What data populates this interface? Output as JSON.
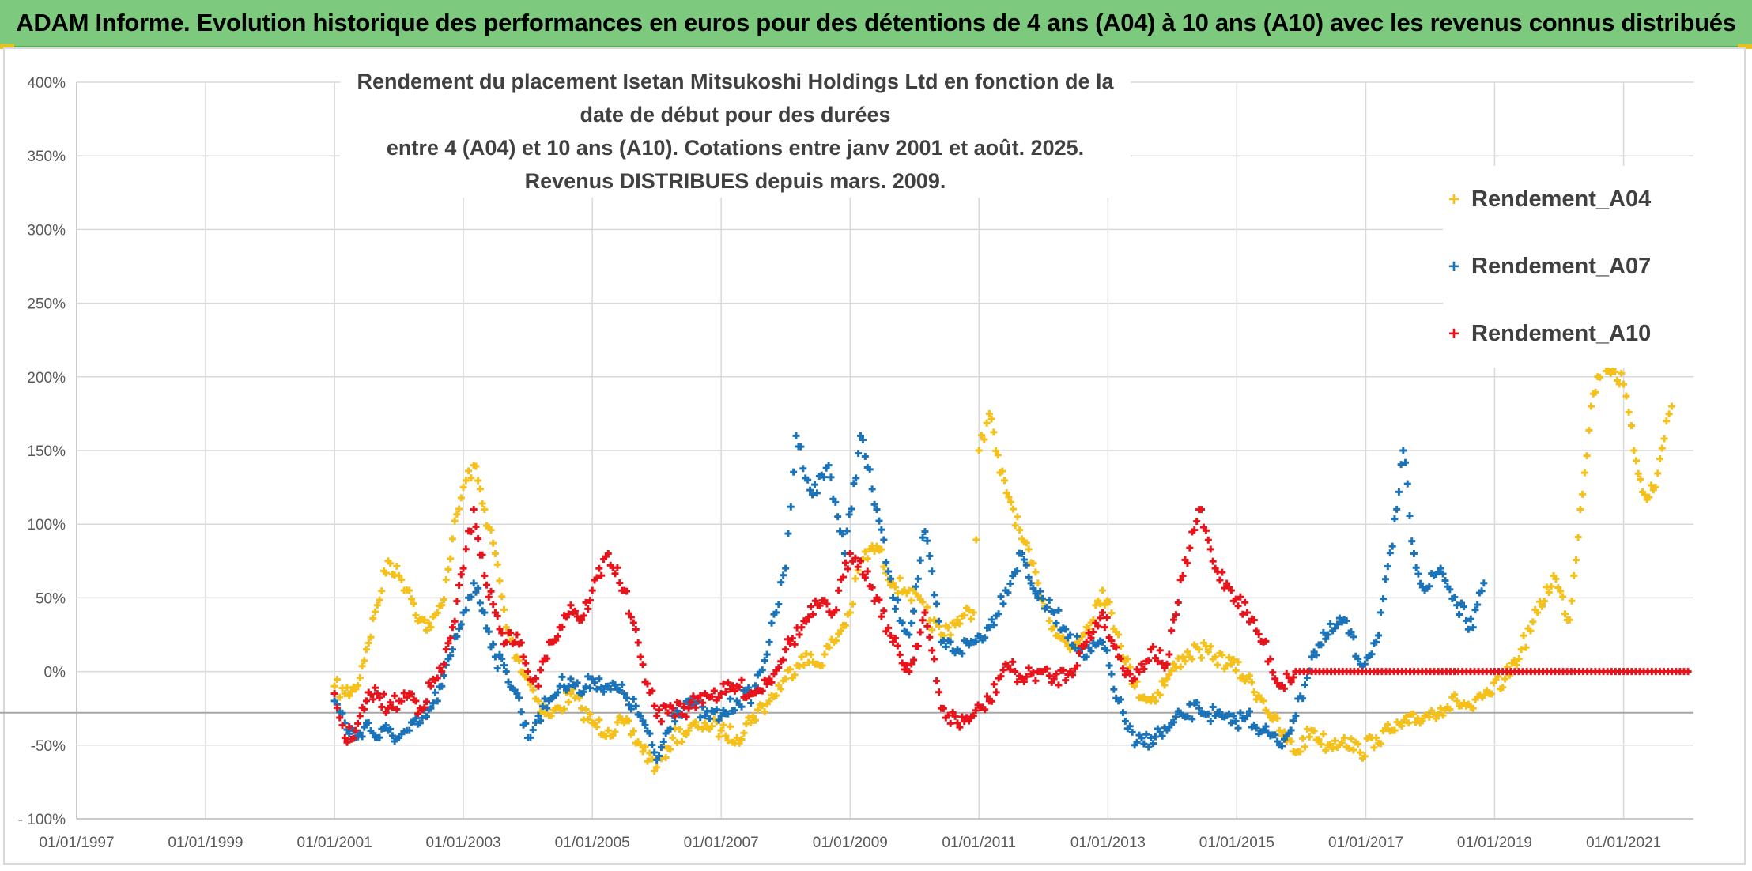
{
  "banner": {
    "text": "ADAM Informe. Evolution historique des performances en euros pour des détentions de 4 ans (A04) à 10 ans (A10) avec les revenus connus distribués"
  },
  "chart_data": {
    "type": "scatter",
    "title_line1": "Rendement du placement Isetan Mitsukoshi Holdings Ltd en fonction de la date de début pour des durées",
    "title_line2": "entre 4 (A04) et 10 ans (A10). Cotations entre janv 2001 et août. 2025. Revenus DISTRIBUES depuis mars. 2009.",
    "x_axis": {
      "type": "date",
      "range": [
        "1997-01-01",
        "2022-02-01"
      ],
      "tick_labels": [
        "01/01/1997",
        "01/01/1999",
        "01/01/2001",
        "01/01/2003",
        "01/01/2005",
        "01/01/2007",
        "01/01/2009",
        "01/01/2011",
        "01/01/2013",
        "01/01/2015",
        "01/01/2017",
        "01/01/2019",
        "01/01/2021"
      ]
    },
    "y_axis": {
      "range": [
        -100,
        400
      ],
      "unit": "%",
      "tick_labels": [
        "- 100%",
        "-50%",
        "0%",
        "50%",
        "100%",
        "150%",
        "200%",
        "250%",
        "300%",
        "350%",
        "400%"
      ]
    },
    "grid": true,
    "legend_position": "right",
    "series": [
      {
        "name": "Rendement_A04",
        "color": "#f5c01a",
        "points": [
          [
            "2001-01-01",
            -10
          ],
          [
            "2001-03-01",
            -15
          ],
          [
            "2001-05-01",
            -12
          ],
          [
            "2001-07-01",
            15
          ],
          [
            "2001-09-01",
            45
          ],
          [
            "2001-11-01",
            75
          ],
          [
            "2002-01-01",
            65
          ],
          [
            "2002-03-01",
            55
          ],
          [
            "2002-05-01",
            35
          ],
          [
            "2002-07-01",
            30
          ],
          [
            "2002-09-01",
            45
          ],
          [
            "2002-11-01",
            90
          ],
          [
            "2003-01-01",
            125
          ],
          [
            "2003-03-01",
            140
          ],
          [
            "2003-05-01",
            110
          ],
          [
            "2003-07-01",
            80
          ],
          [
            "2003-09-01",
            30
          ],
          [
            "2003-11-01",
            10
          ],
          [
            "2004-01-01",
            -5
          ],
          [
            "2004-03-01",
            -20
          ],
          [
            "2004-05-01",
            -30
          ],
          [
            "2004-07-01",
            -25
          ],
          [
            "2004-09-01",
            -15
          ],
          [
            "2004-11-01",
            -25
          ],
          [
            "2005-01-01",
            -35
          ],
          [
            "2005-04-01",
            -40
          ],
          [
            "2005-07-01",
            -35
          ],
          [
            "2005-10-01",
            -50
          ],
          [
            "2006-01-01",
            -65
          ],
          [
            "2006-04-01",
            -45
          ],
          [
            "2006-07-01",
            -40
          ],
          [
            "2006-10-01",
            -35
          ],
          [
            "2007-01-01",
            -40
          ],
          [
            "2007-04-01",
            -45
          ],
          [
            "2007-07-01",
            -30
          ],
          [
            "2007-10-01",
            -20
          ],
          [
            "2008-01-01",
            -5
          ],
          [
            "2008-04-01",
            10
          ],
          [
            "2008-07-01",
            5
          ],
          [
            "2008-10-01",
            20
          ],
          [
            "2009-01-01",
            40
          ],
          [
            "2009-03-01",
            75
          ],
          [
            "2009-06-01",
            85
          ],
          [
            "2009-09-01",
            60
          ],
          [
            "2009-12-01",
            55
          ],
          [
            "2010-03-01",
            40
          ],
          [
            "2010-06-01",
            25
          ],
          [
            "2010-09-01",
            35
          ],
          [
            "2010-12-01",
            40
          ],
          [
            "2011-01-01",
            150
          ],
          [
            "2011-03-01",
            175
          ],
          [
            "2011-05-01",
            135
          ],
          [
            "2011-07-01",
            115
          ],
          [
            "2011-09-01",
            90
          ],
          [
            "2011-12-01",
            60
          ],
          [
            "2012-03-01",
            30
          ],
          [
            "2012-06-01",
            15
          ],
          [
            "2012-09-01",
            30
          ],
          [
            "2012-12-01",
            55
          ],
          [
            "2013-03-01",
            25
          ],
          [
            "2013-06-01",
            -10
          ],
          [
            "2013-09-01",
            -20
          ],
          [
            "2013-12-01",
            -5
          ],
          [
            "2014-03-01",
            10
          ],
          [
            "2014-06-01",
            15
          ],
          [
            "2014-09-01",
            10
          ],
          [
            "2014-12-01",
            5
          ],
          [
            "2015-03-01",
            -5
          ],
          [
            "2015-06-01",
            -20
          ],
          [
            "2015-09-01",
            -40
          ],
          [
            "2015-12-01",
            -55
          ],
          [
            "2016-03-01",
            -40
          ],
          [
            "2016-06-01",
            -50
          ],
          [
            "2016-09-01",
            -45
          ],
          [
            "2016-12-01",
            -55
          ],
          [
            "2017-03-01",
            -45
          ],
          [
            "2017-06-01",
            -40
          ],
          [
            "2017-09-01",
            -35
          ],
          [
            "2017-12-01",
            -30
          ],
          [
            "2018-03-01",
            -25
          ],
          [
            "2018-06-01",
            -20
          ],
          [
            "2018-09-01",
            -25
          ],
          [
            "2018-12-01",
            -15
          ],
          [
            "2019-03-01",
            -5
          ],
          [
            "2019-06-01",
            15
          ],
          [
            "2019-09-01",
            40
          ],
          [
            "2019-12-01",
            65
          ],
          [
            "2020-03-01",
            35
          ],
          [
            "2020-05-01",
            110
          ],
          [
            "2020-07-01",
            180
          ],
          [
            "2020-09-01",
            210
          ],
          [
            "2020-11-01",
            205
          ],
          [
            "2021-01-01",
            195
          ],
          [
            "2021-03-01",
            150
          ],
          [
            "2021-05-01",
            120
          ],
          [
            "2021-07-01",
            125
          ],
          [
            "2021-09-01",
            170
          ],
          [
            "2021-10-01",
            180
          ]
        ]
      },
      {
        "name": "Rendement_A07",
        "color": "#1a73b8",
        "points": [
          [
            "2001-01-01",
            -20
          ],
          [
            "2001-03-01",
            -35
          ],
          [
            "2001-05-01",
            -45
          ],
          [
            "2001-07-01",
            -35
          ],
          [
            "2001-09-01",
            -45
          ],
          [
            "2001-11-01",
            -40
          ],
          [
            "2002-01-01",
            -45
          ],
          [
            "2002-03-01",
            -40
          ],
          [
            "2002-05-01",
            -35
          ],
          [
            "2002-07-01",
            -25
          ],
          [
            "2002-09-01",
            -10
          ],
          [
            "2002-11-01",
            15
          ],
          [
            "2003-01-01",
            40
          ],
          [
            "2003-03-01",
            60
          ],
          [
            "2003-05-01",
            40
          ],
          [
            "2003-07-01",
            10
          ],
          [
            "2003-09-01",
            0
          ],
          [
            "2003-11-01",
            -15
          ],
          [
            "2004-01-01",
            -45
          ],
          [
            "2004-03-01",
            -30
          ],
          [
            "2004-05-01",
            -20
          ],
          [
            "2004-07-01",
            -10
          ],
          [
            "2004-09-01",
            -5
          ],
          [
            "2004-11-01",
            -15
          ],
          [
            "2005-01-01",
            -5
          ],
          [
            "2005-04-01",
            -10
          ],
          [
            "2005-07-01",
            -15
          ],
          [
            "2005-10-01",
            -30
          ],
          [
            "2006-01-01",
            -60
          ],
          [
            "2006-04-01",
            -30
          ],
          [
            "2006-07-01",
            -20
          ],
          [
            "2006-10-01",
            -30
          ],
          [
            "2007-01-01",
            -30
          ],
          [
            "2007-04-01",
            -20
          ],
          [
            "2007-07-01",
            -15
          ],
          [
            "2007-10-01",
            20
          ],
          [
            "2008-01-01",
            70
          ],
          [
            "2008-03-01",
            160
          ],
          [
            "2008-06-01",
            120
          ],
          [
            "2008-09-01",
            140
          ],
          [
            "2008-12-01",
            80
          ],
          [
            "2009-03-01",
            160
          ],
          [
            "2009-06-01",
            110
          ],
          [
            "2009-09-01",
            50
          ],
          [
            "2009-12-01",
            25
          ],
          [
            "2010-03-01",
            95
          ],
          [
            "2010-06-01",
            20
          ],
          [
            "2010-09-01",
            15
          ],
          [
            "2010-12-01",
            20
          ],
          [
            "2011-03-01",
            30
          ],
          [
            "2011-06-01",
            55
          ],
          [
            "2011-09-01",
            80
          ],
          [
            "2011-12-01",
            50
          ],
          [
            "2012-03-01",
            40
          ],
          [
            "2012-06-01",
            25
          ],
          [
            "2012-09-01",
            10
          ],
          [
            "2012-12-01",
            20
          ],
          [
            "2013-03-01",
            -20
          ],
          [
            "2013-06-01",
            -50
          ],
          [
            "2013-09-01",
            -45
          ],
          [
            "2013-12-01",
            -40
          ],
          [
            "2014-03-01",
            -30
          ],
          [
            "2014-06-01",
            -25
          ],
          [
            "2014-09-01",
            -30
          ],
          [
            "2014-12-01",
            -35
          ],
          [
            "2015-03-01",
            -30
          ],
          [
            "2015-06-01",
            -40
          ],
          [
            "2015-09-01",
            -50
          ],
          [
            "2015-12-01",
            -30
          ],
          [
            "2016-03-01",
            10
          ],
          [
            "2016-06-01",
            25
          ],
          [
            "2016-09-01",
            35
          ],
          [
            "2016-12-01",
            5
          ],
          [
            "2017-03-01",
            20
          ],
          [
            "2017-06-01",
            85
          ],
          [
            "2017-08-01",
            150
          ],
          [
            "2017-10-01",
            80
          ],
          [
            "2017-12-01",
            55
          ],
          [
            "2018-03-01",
            70
          ],
          [
            "2018-06-01",
            45
          ],
          [
            "2018-09-01",
            30
          ],
          [
            "2018-11-01",
            60
          ]
        ]
      },
      {
        "name": "Rendement_A10",
        "color": "#e8121b",
        "points": [
          [
            "2001-01-01",
            -15
          ],
          [
            "2001-03-01",
            -45
          ],
          [
            "2001-05-01",
            -40
          ],
          [
            "2001-07-01",
            -20
          ],
          [
            "2001-09-01",
            -15
          ],
          [
            "2001-11-01",
            -25
          ],
          [
            "2002-01-01",
            -20
          ],
          [
            "2002-03-01",
            -15
          ],
          [
            "2002-05-01",
            -25
          ],
          [
            "2002-07-01",
            -10
          ],
          [
            "2002-09-01",
            0
          ],
          [
            "2002-11-01",
            30
          ],
          [
            "2003-01-01",
            70
          ],
          [
            "2003-03-01",
            110
          ],
          [
            "2003-05-01",
            65
          ],
          [
            "2003-07-01",
            40
          ],
          [
            "2003-09-01",
            20
          ],
          [
            "2003-11-01",
            25
          ],
          [
            "2004-01-01",
            0
          ],
          [
            "2004-03-01",
            -10
          ],
          [
            "2004-05-01",
            20
          ],
          [
            "2004-07-01",
            30
          ],
          [
            "2004-09-01",
            45
          ],
          [
            "2004-11-01",
            35
          ],
          [
            "2005-01-01",
            55
          ],
          [
            "2005-04-01",
            80
          ],
          [
            "2005-07-01",
            55
          ],
          [
            "2005-10-01",
            10
          ],
          [
            "2006-01-01",
            -30
          ],
          [
            "2006-04-01",
            -25
          ],
          [
            "2006-07-01",
            -25
          ],
          [
            "2006-10-01",
            -15
          ],
          [
            "2007-01-01",
            -15
          ],
          [
            "2007-04-01",
            -10
          ],
          [
            "2007-07-01",
            -15
          ],
          [
            "2007-10-01",
            -5
          ],
          [
            "2008-01-01",
            15
          ],
          [
            "2008-04-01",
            30
          ],
          [
            "2008-07-01",
            45
          ],
          [
            "2008-10-01",
            40
          ],
          [
            "2009-01-01",
            80
          ],
          [
            "2009-03-01",
            75
          ],
          [
            "2009-06-01",
            50
          ],
          [
            "2009-09-01",
            20
          ],
          [
            "2009-12-01",
            0
          ],
          [
            "2010-03-01",
            40
          ],
          [
            "2010-06-01",
            -25
          ],
          [
            "2010-09-01",
            -35
          ],
          [
            "2010-12-01",
            -30
          ],
          [
            "2011-03-01",
            -20
          ],
          [
            "2011-06-01",
            5
          ],
          [
            "2011-09-01",
            -5
          ],
          [
            "2011-12-01",
            0
          ],
          [
            "2012-03-01",
            -5
          ],
          [
            "2012-06-01",
            0
          ],
          [
            "2012-09-01",
            20
          ],
          [
            "2012-12-01",
            40
          ],
          [
            "2013-03-01",
            10
          ],
          [
            "2013-06-01",
            -5
          ],
          [
            "2013-09-01",
            15
          ],
          [
            "2013-12-01",
            5
          ],
          [
            "2014-03-01",
            65
          ],
          [
            "2014-06-01",
            110
          ],
          [
            "2014-09-01",
            70
          ],
          [
            "2014-12-01",
            55
          ],
          [
            "2015-03-01",
            40
          ],
          [
            "2015-06-01",
            20
          ],
          [
            "2015-09-01",
            -10
          ],
          [
            "2015-12-01",
            0
          ],
          [
            "2016-03-01",
            0
          ],
          [
            "2017-01-01",
            0
          ],
          [
            "2018-01-01",
            0
          ],
          [
            "2019-01-01",
            0
          ],
          [
            "2020-01-01",
            0
          ],
          [
            "2021-01-01",
            0
          ],
          [
            "2022-01-01",
            0
          ]
        ]
      }
    ]
  }
}
